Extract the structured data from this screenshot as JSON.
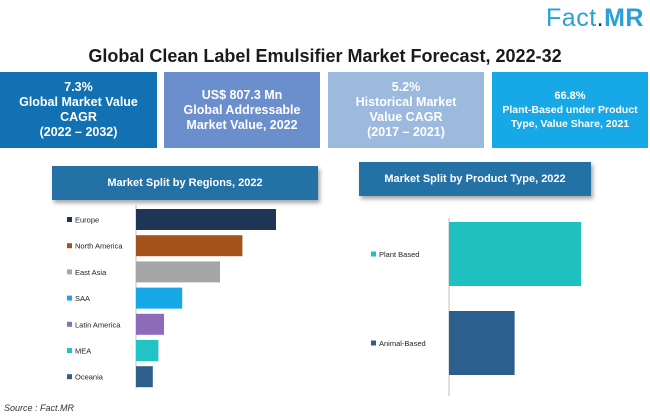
{
  "brand": {
    "left": "Fact",
    "dot": ".",
    "right": "MR"
  },
  "title": "Global Clean Label Emulsifier Market Forecast, 2022-32",
  "kpis": [
    {
      "lines": [
        "7.3%",
        "Global Market Value",
        "CAGR",
        "(2022 – 2032)"
      ],
      "color": "#1271b3"
    },
    {
      "lines": [
        "US$ 807.3 Mn",
        "Global Addressable",
        "Market Value, 2022"
      ],
      "color": "#6b8fcd"
    },
    {
      "lines": [
        "5.2%",
        "Historical Market",
        "Value CAGR",
        "(2017 – 2021)"
      ],
      "color": "#9cb9de"
    },
    {
      "lines": [
        "66.8%",
        "Plant-Based under Product",
        "Type, Value Share, 2021"
      ],
      "color": "#17a8e8"
    }
  ],
  "chart_data": [
    {
      "type": "bar",
      "orientation": "horizontal",
      "title": "Market Split by Regions, 2022",
      "categories": [
        "Europe",
        "North America",
        "East Asia",
        "SAA",
        "Latin America",
        "MEA",
        "Oceania"
      ],
      "values": [
        100,
        76,
        60,
        33,
        20,
        16,
        12
      ],
      "colors": [
        "#1f3555",
        "#a4541b",
        "#a6a6a6",
        "#17a8e8",
        "#8c6bb8",
        "#21c3c5",
        "#2e5f8c"
      ],
      "xlim": [
        0,
        100
      ]
    },
    {
      "type": "bar",
      "orientation": "horizontal",
      "title": "Market Split by Product Type, 2022",
      "categories": [
        "Plant Based",
        "Animal-Based"
      ],
      "values": [
        66.8,
        33.2
      ],
      "colors": [
        "#1fc1c0",
        "#2d5f8e"
      ],
      "xlim": [
        0,
        66.8
      ]
    }
  ],
  "source": "Source : Fact.MR"
}
